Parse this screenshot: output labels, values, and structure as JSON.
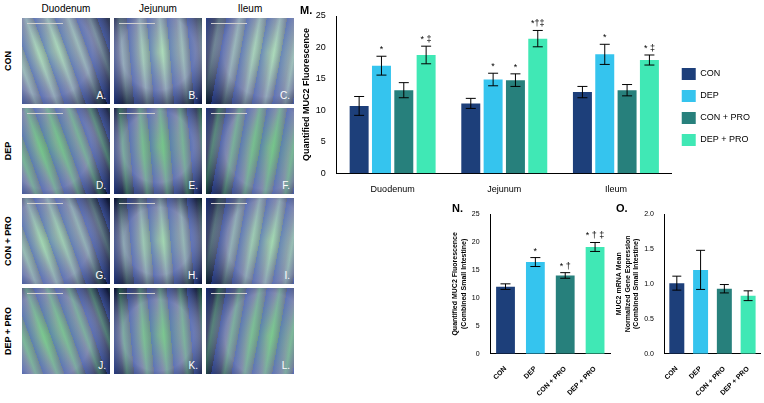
{
  "image_grid": {
    "columns": [
      "Duodenum",
      "Jejunum",
      "Ileum"
    ],
    "rows": [
      "CON",
      "DEP",
      "CON + PRO",
      "DEP + PRO"
    ],
    "panels": [
      "A.",
      "B.",
      "C.",
      "D.",
      "E.",
      "F.",
      "G.",
      "H.",
      "I.",
      "J.",
      "K.",
      "L."
    ]
  },
  "chart_data": [
    {
      "panel_label": "M.",
      "type": "bar",
      "y_label": "Quantified MUC2 Fluorescence",
      "categories": [
        "Duodenum",
        "Jejunum",
        "Ileum"
      ],
      "series": [
        {
          "name": "CON",
          "color": "#1d3f7a",
          "values": [
            10.7,
            11.1,
            12.9
          ],
          "errors": [
            1.5,
            0.8,
            0.9
          ],
          "annotations": [
            null,
            null,
            null
          ]
        },
        {
          "name": "DEP",
          "color": "#35c4ee",
          "values": [
            17.1,
            14.9,
            18.9
          ],
          "errors": [
            1.5,
            1.0,
            1.6
          ],
          "annotations": [
            "*",
            "*",
            "*"
          ]
        },
        {
          "name": "CON + PRO",
          "color": "#27807c",
          "values": [
            13.2,
            14.8,
            13.2
          ],
          "errors": [
            1.2,
            1.0,
            0.9
          ],
          "annotations": [
            null,
            "*",
            null
          ]
        },
        {
          "name": "DEP + PRO",
          "color": "#40e8b5",
          "values": [
            18.8,
            21.4,
            18.0
          ],
          "errors": [
            1.4,
            1.3,
            0.8
          ],
          "annotations": [
            "* ‡",
            "*†‡",
            "* ‡"
          ]
        }
      ],
      "ylim": [
        0,
        25
      ],
      "yticks": [
        0,
        5,
        10,
        15,
        20,
        25
      ],
      "grid": false,
      "legend": "right"
    },
    {
      "panel_label": "N.",
      "type": "bar",
      "y_label": [
        "Quantified MUC2 Fluorescence",
        "(Combined Small Intestine)"
      ],
      "categories": [
        "CON",
        "DEP",
        "CON + PRO",
        "DEP + PRO"
      ],
      "values": [
        12.0,
        16.4,
        14.0,
        19.1
      ],
      "errors": [
        0.5,
        0.8,
        0.5,
        0.8
      ],
      "annotations": [
        null,
        "*",
        "* †",
        "* † ‡"
      ],
      "colors": [
        "#1d3f7a",
        "#35c4ee",
        "#27807c",
        "#40e8b5"
      ],
      "ylim": [
        0,
        25
      ],
      "yticks": [
        0,
        5,
        10,
        15,
        20,
        25
      ],
      "grid": false
    },
    {
      "panel_label": "O.",
      "type": "bar",
      "y_label": [
        "MUC2 mRNA Mean",
        "Normalized Gene Expression",
        "(Combined Small Intestine)"
      ],
      "categories": [
        "CON",
        "DEP",
        "CON + PRO",
        "DEP + PRO"
      ],
      "values": [
        1.01,
        1.2,
        0.93,
        0.83
      ],
      "errors": [
        0.1,
        0.28,
        0.06,
        0.07
      ],
      "annotations": [
        null,
        null,
        null,
        null
      ],
      "colors": [
        "#1d3f7a",
        "#35c4ee",
        "#27807c",
        "#40e8b5"
      ],
      "ylim": [
        0,
        2
      ],
      "yticks": [
        {
          "value": 0,
          "label": "0.0"
        },
        {
          "value": 0.5,
          "label": "0.5"
        },
        {
          "value": 1,
          "label": "1.0"
        },
        {
          "value": 1.5,
          "label": "1.5"
        },
        {
          "value": 2,
          "label": "2.0"
        }
      ],
      "grid": false
    }
  ]
}
